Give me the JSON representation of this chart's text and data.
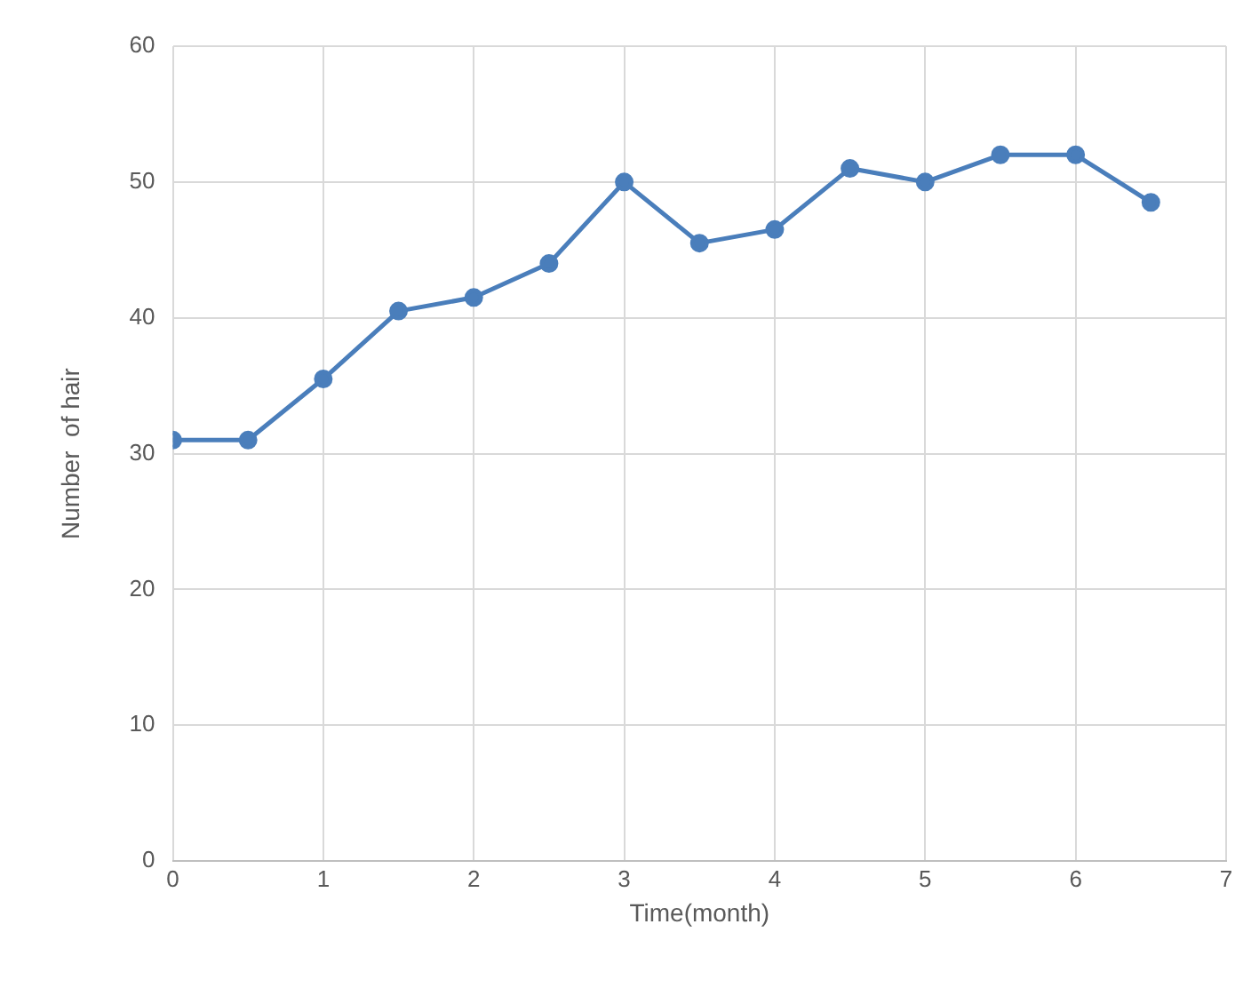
{
  "chart_data": {
    "type": "line",
    "xlabel": "Time(month)",
    "ylabel": "Number  of hair",
    "x": [
      0,
      0.5,
      1,
      1.5,
      2,
      2.5,
      3,
      3.5,
      4,
      4.5,
      5,
      5.5,
      6,
      6.5
    ],
    "series": [
      {
        "color": "#4a7ebb",
        "values": [
          31,
          31,
          35.5,
          40.5,
          41.5,
          44,
          50,
          45.5,
          46.5,
          51,
          50,
          52,
          52,
          48.5
        ]
      }
    ],
    "xlim": [
      0,
      7
    ],
    "xticks": [
      0,
      1,
      2,
      3,
      4,
      5,
      6,
      7
    ],
    "ylim": [
      0,
      60
    ],
    "yticks": [
      0,
      10,
      20,
      30,
      40,
      50,
      60
    ],
    "grid": true,
    "legend": false,
    "marker": "circle",
    "line_style": "solid"
  }
}
